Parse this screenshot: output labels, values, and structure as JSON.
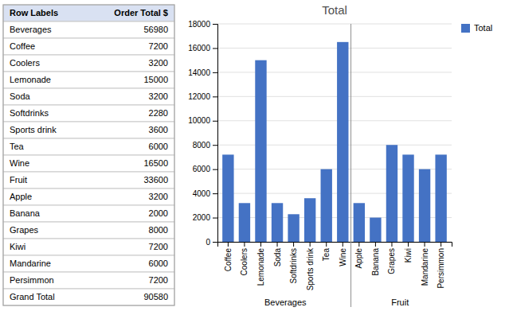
{
  "chart_data": [
    {
      "type": "table",
      "columns": [
        "Row Labels",
        "Order Total $"
      ],
      "categories": [
        "Beverages",
        "Coffee",
        "Coolers",
        "Lemonade",
        "Soda",
        "Softdrinks",
        "Sports drink",
        "Tea",
        "Wine",
        "Fruit",
        "Apple",
        "Banana",
        "Grapes",
        "Kiwi",
        "Mandarine",
        "Persimmon",
        "Grand Total"
      ],
      "values": [
        56980,
        7200,
        3200,
        15000,
        3200,
        2280,
        3600,
        6000,
        16500,
        33600,
        3200,
        2000,
        8000,
        7200,
        6000,
        7200,
        90580
      ]
    },
    {
      "type": "bar",
      "title": "Total",
      "categories": [
        "Coffee",
        "Coolers",
        "Lemonade",
        "Soda",
        "Softdrinks",
        "Sports drink",
        "Tea",
        "Wine",
        "Apple",
        "Banana",
        "Grapes",
        "Kiwi",
        "Mandarine",
        "Persimmon"
      ],
      "groups": [
        "Beverages",
        "Beverages",
        "Beverages",
        "Beverages",
        "Beverages",
        "Beverages",
        "Beverages",
        "Beverages",
        "Fruit",
        "Fruit",
        "Fruit",
        "Fruit",
        "Fruit",
        "Fruit"
      ],
      "series": [
        {
          "name": "Total",
          "color": "#4472C4",
          "values": [
            7200,
            3200,
            15000,
            3200,
            2280,
            3600,
            6000,
            16500,
            3200,
            2000,
            8000,
            7200,
            6000,
            7200
          ]
        }
      ],
      "ylim": [
        0,
        18000
      ],
      "yticks": [
        0,
        2000,
        4000,
        6000,
        8000,
        10000,
        12000,
        14000,
        16000,
        18000
      ],
      "grid": true,
      "legend": "right"
    }
  ]
}
